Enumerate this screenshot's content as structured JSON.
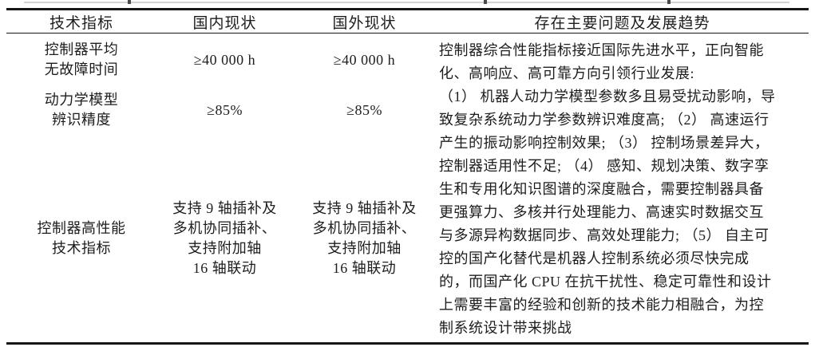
{
  "colors": {
    "background": "#ffffff",
    "text": "#1d1d1d",
    "rule": "#161616"
  },
  "table": {
    "headers": {
      "indicator": "技术指标",
      "domestic": "国内现状",
      "foreign": "国外现状",
      "problems": "存在主要问题及发展趋势"
    },
    "rows": [
      {
        "indicator": [
          "控制器平均",
          "无故障时间"
        ],
        "domestic": [
          "≥40 000 h"
        ],
        "foreign": [
          "≥40 000 h"
        ]
      },
      {
        "indicator": [
          "动力学模型",
          "辨识精度"
        ],
        "domestic": [
          "≥85%"
        ],
        "foreign": [
          "≥85%"
        ]
      },
      {
        "indicator": [
          "控制器高性能",
          "技术指标"
        ],
        "domestic": [
          "支持 9 轴插补及",
          "多机协同插补、",
          "支持附加轴",
          "16 轴联动"
        ],
        "foreign": [
          "支持 9 轴插补及",
          "多机协同插补、",
          "支持附加轴",
          "16 轴联动"
        ]
      }
    ],
    "problems": {
      "lines": [
        "控制器综合性能指标接近国际先进水平，正向智能",
        "化、高响应、高可靠方向引领行业发展:",
        "（1） 机器人动力学模型参数多且易受扰动影响，导",
        "致复杂系统动力学参数辨识难度高; （2） 高速运行",
        "产生的振动影响控制效果; （3） 控制场景差异大，",
        "控制器适用性不足; （4） 感知、规划决策、数字孪",
        "生和专用化知识图谱的深度融合，需要控制器具备",
        "更强算力、多核并行处理能力、高速实时数据交互",
        "与多源异构数据同步、高效处理能力; （5） 自主可",
        "控的国产化替代是机器人控制系统必须尽快完成",
        "的，而国产化 CPU 在抗干扰性、稳定可靠性和设计",
        "上需要丰富的经验和创新的技术能力相融合，为控",
        "制系统设计带来挑战"
      ]
    }
  }
}
